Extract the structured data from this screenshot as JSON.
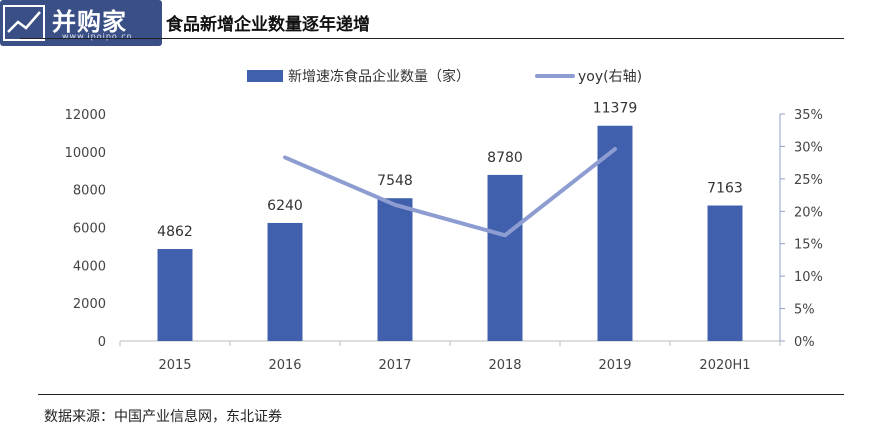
{
  "logo": {
    "text": "并购家",
    "url_text": "www.ipoipo.cn"
  },
  "title": "食品新增企业数量逐年递增",
  "source": "数据来源：中国产业信息网，东北证券",
  "chart_data": {
    "type": "bar",
    "categories": [
      "2015",
      "2016",
      "2017",
      "2018",
      "2019",
      "2020H1"
    ],
    "series": [
      {
        "name": "新增速冻食品企业数量（家）",
        "type": "bar",
        "axis": "left",
        "color": "#4060ad",
        "values": [
          4862,
          6240,
          7548,
          8780,
          11379,
          7163
        ]
      },
      {
        "name": "yoy(右轴)",
        "type": "line",
        "axis": "right",
        "color": "#8e9dd1",
        "values": [
          null,
          0.283,
          0.21,
          0.163,
          0.296,
          null
        ]
      }
    ],
    "y_left": {
      "min": 0,
      "max": 12000,
      "ticks": [
        "0",
        "2000",
        "4000",
        "6000",
        "8000",
        "10000",
        "12000"
      ]
    },
    "y_right": {
      "min": 0,
      "max": 0.35,
      "ticks": [
        "0%",
        "5%",
        "10%",
        "15%",
        "20%",
        "25%",
        "30%",
        "35%"
      ]
    },
    "grid": false,
    "legend_position": "top"
  }
}
